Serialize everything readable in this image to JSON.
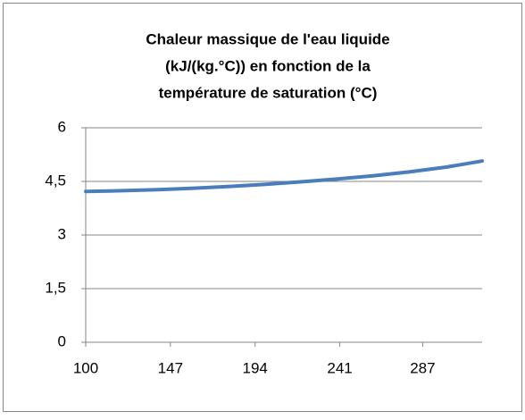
{
  "chart_data": {
    "type": "line",
    "title": [
      "Chaleur massique de l'eau liquide",
      "(kJ/(kg.°C)) en fonction de la",
      "température de saturation (°C)"
    ],
    "x": [
      100,
      120,
      140,
      160,
      180,
      200,
      220,
      240,
      260,
      280,
      300,
      320
    ],
    "series": [
      {
        "name": "Chaleur massique",
        "color": "#4a7ebb",
        "values": [
          4.22,
          4.24,
          4.27,
          4.31,
          4.36,
          4.42,
          4.49,
          4.57,
          4.66,
          4.77,
          4.9,
          5.07
        ]
      }
    ],
    "xlim": [
      100,
      320
    ],
    "xticks": [
      100,
      147,
      194,
      241,
      287
    ],
    "ylim": [
      0,
      6
    ],
    "yticks": [
      0,
      {
        "value": 1.5,
        "label": "1,5"
      },
      3,
      {
        "value": 4.5,
        "label": "4,5"
      },
      6
    ],
    "grid": true
  }
}
